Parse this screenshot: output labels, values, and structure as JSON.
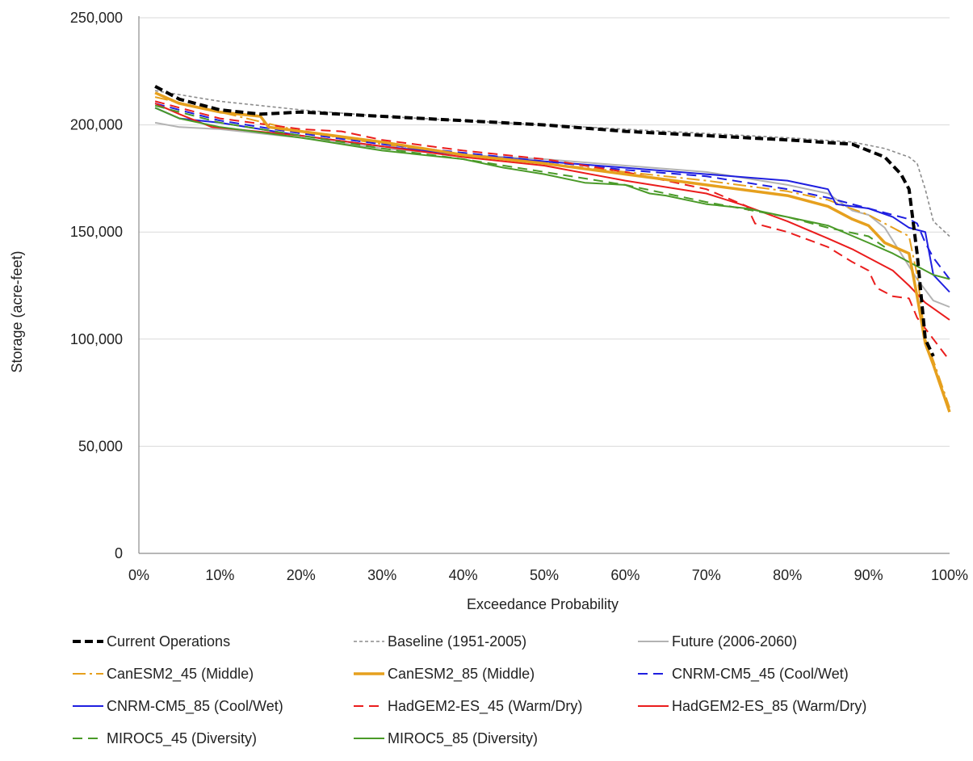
{
  "chart_data": {
    "type": "line",
    "title": "",
    "xlabel": "Exceedance Probability",
    "ylabel": "Storage (acre-feet)",
    "xlim": [
      0,
      100
    ],
    "ylim": [
      0,
      250000
    ],
    "x_ticks": [
      "0%",
      "10%",
      "20%",
      "30%",
      "40%",
      "50%",
      "60%",
      "70%",
      "80%",
      "90%",
      "100%"
    ],
    "y_ticks": [
      "0",
      "50,000",
      "100,000",
      "150,000",
      "200,000",
      "250,000"
    ],
    "grid": "horizontal",
    "legend_position": "bottom",
    "colors": {
      "black": "#000000",
      "gray_dark": "#8c8c8c",
      "gray_light": "#b3b3b3",
      "orange": "#e6a01e",
      "blue": "#1f1fe0",
      "red": "#ea1d1d",
      "green": "#4a9a28"
    },
    "series": [
      {
        "name": "Current Operations",
        "style": "dashed-bold",
        "color": "#000000",
        "x": [
          2,
          5,
          10,
          15,
          20,
          30,
          40,
          50,
          60,
          70,
          80,
          88,
          92,
          94,
          95,
          96,
          97,
          98
        ],
        "y": [
          218000,
          212000,
          207000,
          205000,
          206000,
          204000,
          202000,
          200000,
          197000,
          195000,
          193000,
          191000,
          185000,
          177000,
          170000,
          140000,
          100000,
          92000
        ]
      },
      {
        "name": "Baseline (1951-2005)",
        "style": "dashed-thin",
        "color": "#8c8c8c",
        "x": [
          2,
          10,
          20,
          30,
          40,
          50,
          60,
          70,
          80,
          88,
          92,
          95,
          96,
          97,
          98,
          100
        ],
        "y": [
          216000,
          211000,
          207000,
          204000,
          202000,
          200000,
          198000,
          196000,
          194000,
          192000,
          189000,
          185000,
          182000,
          170000,
          155000,
          148000
        ]
      },
      {
        "name": "Future (2006-2060)",
        "style": "solid-thin",
        "color": "#b3b3b3",
        "x": [
          2,
          5,
          10,
          20,
          30,
          40,
          50,
          60,
          70,
          80,
          85,
          88,
          90,
          92,
          94,
          96,
          98,
          100
        ],
        "y": [
          201000,
          199000,
          198000,
          194000,
          189000,
          186000,
          184000,
          181000,
          178000,
          172000,
          168000,
          160000,
          158000,
          152000,
          140000,
          128000,
          118000,
          115000
        ]
      },
      {
        "name": "CanESM2_45 (Middle)",
        "style": "dashdot",
        "color": "#e6a01e",
        "x": [
          2,
          10,
          20,
          30,
          40,
          50,
          60,
          70,
          80,
          85,
          90,
          93,
          95,
          96,
          97,
          98,
          100
        ],
        "y": [
          213000,
          206000,
          197000,
          191000,
          186000,
          182000,
          178000,
          174000,
          169000,
          165000,
          158000,
          152000,
          148000,
          130000,
          100000,
          90000,
          68000
        ]
      },
      {
        "name": "CanESM2_85 (Middle)",
        "style": "solid-bold",
        "color": "#e6a01e",
        "x": [
          2,
          5,
          10,
          15,
          16,
          20,
          30,
          40,
          50,
          60,
          70,
          80,
          85,
          88,
          90,
          92,
          95,
          96,
          97,
          98,
          100
        ],
        "y": [
          215000,
          210000,
          206000,
          204000,
          199000,
          197000,
          192000,
          186000,
          182000,
          177000,
          172000,
          167000,
          162000,
          156000,
          153000,
          145000,
          140000,
          120000,
          98000,
          88000,
          66000
        ]
      },
      {
        "name": "CNRM-CM5_45 (Cool/Wet)",
        "style": "dashed",
        "color": "#1f1fe0",
        "x": [
          2,
          10,
          20,
          30,
          40,
          50,
          60,
          70,
          80,
          85,
          90,
          93,
          95,
          96,
          97,
          98,
          100
        ],
        "y": [
          210000,
          202000,
          196000,
          191000,
          187000,
          183000,
          179000,
          176000,
          170000,
          166000,
          161000,
          158000,
          156000,
          154000,
          145000,
          138000,
          128000
        ]
      },
      {
        "name": "CNRM-CM5_85 (Cool/Wet)",
        "style": "solid",
        "color": "#1f1fe0",
        "x": [
          2,
          5,
          10,
          20,
          30,
          40,
          50,
          60,
          70,
          80,
          85,
          86,
          90,
          93,
          95,
          97,
          98,
          100
        ],
        "y": [
          208000,
          203000,
          201000,
          195000,
          190000,
          186000,
          183000,
          180000,
          177000,
          174000,
          170000,
          163000,
          161000,
          157000,
          152000,
          150000,
          130000,
          122000
        ]
      },
      {
        "name": "HadGEM2-ES_45 (Warm/Dry)",
        "style": "dashed",
        "color": "#ea1d1d",
        "x": [
          2,
          10,
          20,
          25,
          30,
          40,
          50,
          60,
          70,
          75,
          76,
          80,
          85,
          88,
          90,
          91,
          93,
          95,
          96,
          98,
          100
        ],
        "y": [
          211000,
          203000,
          198000,
          197000,
          193000,
          188000,
          184000,
          178000,
          170000,
          162000,
          154000,
          150000,
          143000,
          136000,
          132000,
          124000,
          120000,
          119000,
          110000,
          100000,
          90000
        ]
      },
      {
        "name": "HadGEM2-ES_85 (Warm/Dry)",
        "style": "solid",
        "color": "#ea1d1d",
        "x": [
          2,
          5,
          9,
          20,
          30,
          40,
          50,
          60,
          70,
          75,
          80,
          85,
          88,
          90,
          93,
          95,
          97,
          100
        ],
        "y": [
          210000,
          205000,
          199000,
          195000,
          190000,
          185000,
          181000,
          174000,
          168000,
          162000,
          155000,
          147000,
          142000,
          138000,
          132000,
          125000,
          117000,
          109000
        ]
      },
      {
        "name": "MIROC5_45 (Diversity)",
        "style": "dashed",
        "color": "#4a9a28",
        "x": [
          2,
          10,
          20,
          30,
          40,
          50,
          60,
          70,
          80,
          85,
          90,
          92
        ],
        "y": [
          209000,
          201000,
          195000,
          189000,
          184000,
          178000,
          172000,
          164000,
          157000,
          152000,
          148000,
          143000
        ]
      },
      {
        "name": "MIROC5_85 (Diversity)",
        "style": "solid",
        "color": "#4a9a28",
        "x": [
          2,
          5,
          10,
          20,
          30,
          40,
          45,
          50,
          55,
          60,
          63,
          65,
          70,
          75,
          80,
          85,
          90,
          93,
          96,
          98,
          100
        ],
        "y": [
          208000,
          203000,
          199000,
          194000,
          188000,
          184000,
          180000,
          177000,
          173000,
          172000,
          168000,
          167000,
          163000,
          161000,
          157000,
          153000,
          145000,
          140000,
          134000,
          130000,
          128000
        ]
      }
    ]
  }
}
